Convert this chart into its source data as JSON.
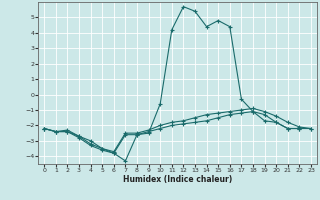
{
  "title": "",
  "xlabel": "Humidex (Indice chaleur)",
  "background_color": "#cce8e8",
  "grid_color": "#b0d4d4",
  "line_color": "#1a6b6b",
  "xlim": [
    -0.5,
    23.5
  ],
  "ylim": [
    -4.5,
    6.0
  ],
  "x": [
    0,
    1,
    2,
    3,
    4,
    5,
    6,
    7,
    8,
    9,
    10,
    11,
    12,
    13,
    14,
    15,
    16,
    17,
    18,
    19,
    20,
    21,
    22,
    23
  ],
  "line1": [
    -2.2,
    -2.4,
    -2.3,
    -2.7,
    -3.0,
    -3.5,
    -3.8,
    -4.3,
    -2.6,
    -2.5,
    -0.6,
    4.2,
    5.7,
    5.4,
    4.4,
    4.8,
    4.4,
    -0.3,
    -1.1,
    -1.7,
    -1.8,
    -2.2,
    -2.2,
    null
  ],
  "line2": [
    -2.2,
    -2.4,
    -2.4,
    -2.8,
    -3.3,
    -3.6,
    -3.8,
    -2.6,
    -2.6,
    -2.4,
    -2.2,
    -2.0,
    -1.9,
    -1.8,
    -1.7,
    -1.5,
    -1.3,
    -1.2,
    -1.1,
    -1.3,
    -1.8,
    -2.2,
    -2.2,
    -2.2
  ],
  "line3": [
    -2.2,
    -2.4,
    -2.4,
    -2.7,
    -3.2,
    -3.5,
    -3.7,
    -2.5,
    -2.5,
    -2.3,
    -2.0,
    -1.8,
    -1.7,
    -1.5,
    -1.3,
    -1.2,
    -1.1,
    -1.0,
    -0.9,
    -1.1,
    -1.4,
    -1.8,
    -2.1,
    -2.2
  ]
}
